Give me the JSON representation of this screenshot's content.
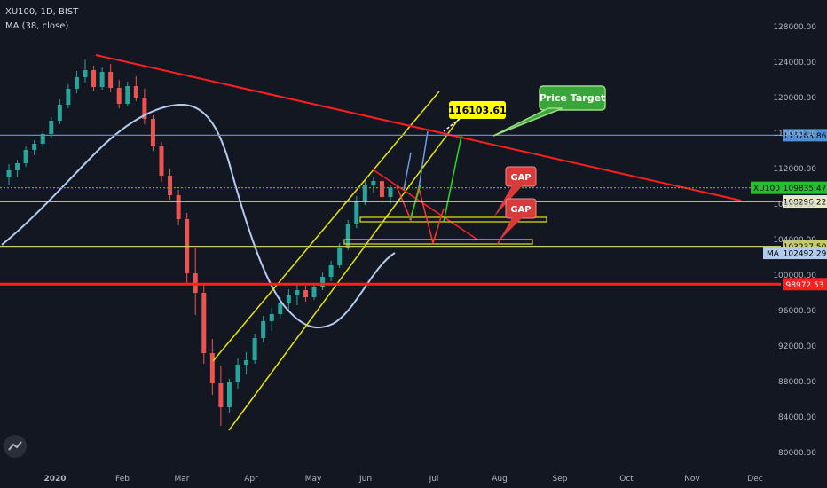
{
  "header": {
    "symbol_line": "XU100, 1D, BIST",
    "indicator_line": "MA (38, close)"
  },
  "colors": {
    "background": "#131722",
    "bull": "#26a69a",
    "bear": "#ef5350",
    "ma": "#b2ccee",
    "channel": "#e6e600",
    "resistance": "#ff1f1f",
    "support_box": "#e6e600",
    "arrow_green": "#22dd22",
    "arrow_blue": "#6f9be8",
    "arrow_red": "#ff3333",
    "axis_text": "#b2b5be"
  },
  "chart_data": {
    "type": "candlestick",
    "symbol": "XU100",
    "timeframe": "1D",
    "exchange": "BIST",
    "ylim": [
      78000,
      130000
    ],
    "y_ticks": [
      "128000.00",
      "124000.00",
      "120000.00",
      "116000.00",
      "112000.00",
      "108000.00",
      "104000.00",
      "100000.00",
      "96000.00",
      "92000.00",
      "88000.00",
      "84000.00",
      "80000.00"
    ],
    "x_ticks": [
      "2020",
      "Feb",
      "Mar",
      "Apr",
      "May",
      "Jun",
      "Jul",
      "Aug",
      "Sep",
      "Oct",
      "Nov",
      "Dec"
    ],
    "price_lines": [
      {
        "label": "115763.86",
        "value": 115763.86,
        "color": "#4d8fd9",
        "style": "solid"
      },
      {
        "label": "109835.47",
        "value": 109835.47,
        "color": "#22c22c",
        "style": "dotted",
        "tag": "XU100"
      },
      {
        "label": "108296.22",
        "value": 108296.22,
        "color": "#e6e8c8",
        "style": "solid"
      },
      {
        "label": "103237.50",
        "value": 103237.5,
        "color": "#c9cc66",
        "style": "solid"
      },
      {
        "label": "102492.29",
        "value": 102492.29,
        "color": "#b2ccee",
        "style": "none",
        "tag": "MA"
      },
      {
        "label": "98972.53",
        "value": 98972.53,
        "color": "#ff1f1f",
        "style": "solid"
      }
    ],
    "annotations": [
      {
        "text": "116103.61",
        "value": 116103.61,
        "kind": "price-callout"
      },
      {
        "text": "Price Target",
        "kind": "callout"
      },
      {
        "text": "GAP",
        "kind": "label"
      },
      {
        "text": "GAP",
        "kind": "label"
      }
    ],
    "ohlc_sample": [
      [
        111000,
        112500,
        110200,
        111800
      ],
      [
        111800,
        113000,
        111000,
        112600
      ],
      [
        112600,
        114500,
        112200,
        114100
      ],
      [
        114100,
        115200,
        113500,
        114800
      ],
      [
        114800,
        116200,
        114400,
        115900
      ],
      [
        115900,
        117800,
        115500,
        117400
      ],
      [
        117400,
        119800,
        117000,
        119200
      ],
      [
        119200,
        121500,
        118800,
        121000
      ],
      [
        121000,
        123000,
        120500,
        122300
      ],
      [
        122300,
        124300,
        121700,
        123100
      ],
      [
        123100,
        123600,
        120800,
        121200
      ],
      [
        121200,
        123400,
        120900,
        122900
      ],
      [
        122900,
        123800,
        120600,
        121100
      ],
      [
        121100,
        122000,
        118800,
        119300
      ],
      [
        119300,
        121800,
        119000,
        121300
      ],
      [
        121300,
        122400,
        119600,
        120000
      ],
      [
        120000,
        121000,
        117000,
        117600
      ],
      [
        117600,
        118000,
        114000,
        114500
      ],
      [
        114500,
        115000,
        110500,
        111200
      ],
      [
        111200,
        112000,
        108500,
        109000
      ],
      [
        109000,
        109600,
        105600,
        106300
      ],
      [
        106300,
        107000,
        99000,
        100200
      ],
      [
        100200,
        103000,
        95500,
        98000
      ],
      [
        98000,
        99000,
        90000,
        91200
      ],
      [
        91200,
        92800,
        86500,
        87800
      ],
      [
        87800,
        89800,
        83000,
        85100
      ],
      [
        85100,
        88300,
        84500,
        87900
      ],
      [
        87900,
        90600,
        87200,
        89900
      ],
      [
        89900,
        91300,
        88800,
        90400
      ],
      [
        90400,
        93400,
        90000,
        92900
      ],
      [
        92900,
        95400,
        92400,
        94800
      ],
      [
        94800,
        96300,
        93700,
        95600
      ],
      [
        95600,
        97500,
        95000,
        96900
      ],
      [
        96900,
        98400,
        96000,
        97700
      ],
      [
        97700,
        99000,
        96600,
        98300
      ],
      [
        98300,
        98800,
        97000,
        97500
      ],
      [
        97500,
        99100,
        97200,
        98700
      ],
      [
        98700,
        100300,
        98300,
        99800
      ],
      [
        99800,
        101600,
        99300,
        101100
      ],
      [
        101100,
        103600,
        100800,
        103100
      ],
      [
        103100,
        106200,
        102800,
        105700
      ],
      [
        105700,
        108900,
        105300,
        108400
      ],
      [
        108400,
        110600,
        107900,
        110100
      ],
      [
        110100,
        111100,
        109300,
        110600
      ],
      [
        110600,
        110900,
        108300,
        108800
      ],
      [
        108800,
        110200,
        108000,
        109835
      ]
    ]
  }
}
